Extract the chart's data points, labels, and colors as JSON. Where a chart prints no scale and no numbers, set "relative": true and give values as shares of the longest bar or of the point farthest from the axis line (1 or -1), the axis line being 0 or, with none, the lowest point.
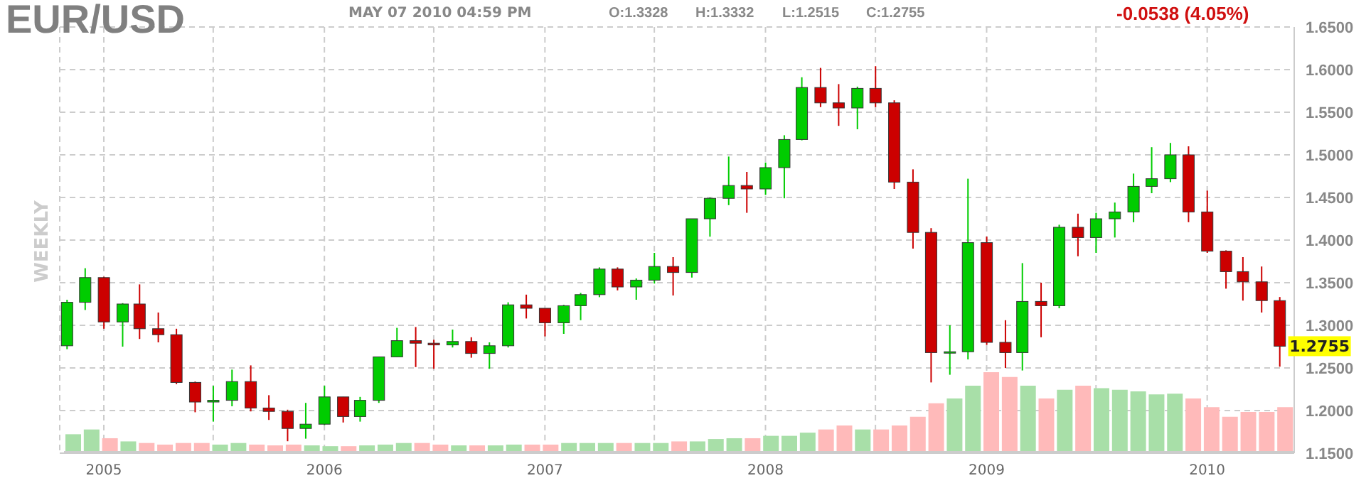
{
  "chart_data": [
    {
      "type": "candlestick",
      "title": "EUR/USD",
      "subtitle": "MAY 07 2010 04:59 PM",
      "ylabel": "WEEKLY",
      "annotations": [
        "O:1.3328",
        "H:1.3332",
        "L:1.2515",
        "C:1.2755",
        "-0.0538 (4.05%)",
        {
          "text": "1.2755",
          "x": "2010-05",
          "y": 1.2755
        }
      ],
      "x": [
        "2004-11",
        "2004-12",
        "2005-01",
        "2005-02",
        "2005-03",
        "2005-04",
        "2005-05",
        "2005-06",
        "2005-07",
        "2005-08",
        "2005-09",
        "2005-10",
        "2005-11",
        "2005-12",
        "2006-01",
        "2006-02",
        "2006-03",
        "2006-04",
        "2006-05",
        "2006-06",
        "2006-07",
        "2006-08",
        "2006-09",
        "2006-10",
        "2006-11",
        "2006-12",
        "2007-01",
        "2007-02",
        "2007-03",
        "2007-04",
        "2007-05",
        "2007-06",
        "2007-07",
        "2007-08",
        "2007-09",
        "2007-10",
        "2007-11",
        "2007-12",
        "2008-01",
        "2008-02",
        "2008-03",
        "2008-04",
        "2008-05",
        "2008-06",
        "2008-07",
        "2008-08",
        "2008-09",
        "2008-10",
        "2008-11",
        "2008-12",
        "2009-01",
        "2009-02",
        "2009-03",
        "2009-04",
        "2009-05",
        "2009-06",
        "2009-07",
        "2009-08",
        "2009-09",
        "2009-10",
        "2009-11",
        "2009-12",
        "2010-01",
        "2010-02",
        "2010-03",
        "2010-04",
        "2010-05"
      ],
      "ohlc": [
        [
          1.276,
          1.33,
          1.272,
          1.327
        ],
        [
          1.327,
          1.367,
          1.318,
          1.356
        ],
        [
          1.356,
          1.357,
          1.296,
          1.304
        ],
        [
          1.304,
          1.326,
          1.275,
          1.325
        ],
        [
          1.325,
          1.348,
          1.284,
          1.296
        ],
        [
          1.296,
          1.315,
          1.28,
          1.289
        ],
        [
          1.289,
          1.296,
          1.231,
          1.233
        ],
        [
          1.233,
          1.234,
          1.198,
          1.21
        ],
        [
          1.21,
          1.229,
          1.187,
          1.212
        ],
        [
          1.212,
          1.248,
          1.205,
          1.234
        ],
        [
          1.234,
          1.253,
          1.199,
          1.203
        ],
        [
          1.203,
          1.218,
          1.189,
          1.199
        ],
        [
          1.199,
          1.201,
          1.164,
          1.179
        ],
        [
          1.179,
          1.209,
          1.167,
          1.184
        ],
        [
          1.184,
          1.229,
          1.183,
          1.216
        ],
        [
          1.216,
          1.216,
          1.186,
          1.193
        ],
        [
          1.193,
          1.216,
          1.187,
          1.212
        ],
        [
          1.212,
          1.263,
          1.209,
          1.263
        ],
        [
          1.263,
          1.297,
          1.263,
          1.282
        ],
        [
          1.282,
          1.298,
          1.251,
          1.279
        ],
        [
          1.279,
          1.283,
          1.249,
          1.277
        ],
        [
          1.277,
          1.295,
          1.274,
          1.281
        ],
        [
          1.281,
          1.286,
          1.262,
          1.267
        ],
        [
          1.267,
          1.28,
          1.249,
          1.276
        ],
        [
          1.276,
          1.327,
          1.274,
          1.324
        ],
        [
          1.324,
          1.336,
          1.308,
          1.32
        ],
        [
          1.32,
          1.32,
          1.287,
          1.303
        ],
        [
          1.303,
          1.324,
          1.29,
          1.323
        ],
        [
          1.323,
          1.338,
          1.306,
          1.336
        ],
        [
          1.336,
          1.368,
          1.333,
          1.366
        ],
        [
          1.366,
          1.368,
          1.341,
          1.345
        ],
        [
          1.345,
          1.355,
          1.33,
          1.353
        ],
        [
          1.353,
          1.385,
          1.349,
          1.369
        ],
        [
          1.369,
          1.38,
          1.335,
          1.362
        ],
        [
          1.362,
          1.425,
          1.356,
          1.425
        ],
        [
          1.425,
          1.45,
          1.404,
          1.449
        ],
        [
          1.449,
          1.498,
          1.441,
          1.464
        ],
        [
          1.464,
          1.48,
          1.432,
          1.46
        ],
        [
          1.46,
          1.491,
          1.453,
          1.485
        ],
        [
          1.485,
          1.523,
          1.449,
          1.518
        ],
        [
          1.518,
          1.591,
          1.517,
          1.579
        ],
        [
          1.579,
          1.602,
          1.556,
          1.561
        ],
        [
          1.561,
          1.583,
          1.534,
          1.555
        ],
        [
          1.555,
          1.58,
          1.53,
          1.578
        ],
        [
          1.578,
          1.604,
          1.556,
          1.561
        ],
        [
          1.561,
          1.564,
          1.46,
          1.468
        ],
        [
          1.468,
          1.483,
          1.39,
          1.409
        ],
        [
          1.409,
          1.414,
          1.233,
          1.268
        ],
        [
          1.268,
          1.3,
          1.242,
          1.269
        ],
        [
          1.269,
          1.472,
          1.26,
          1.397
        ],
        [
          1.397,
          1.404,
          1.277,
          1.28
        ],
        [
          1.28,
          1.306,
          1.25,
          1.268
        ],
        [
          1.268,
          1.373,
          1.247,
          1.328
        ],
        [
          1.328,
          1.35,
          1.286,
          1.323
        ],
        [
          1.323,
          1.418,
          1.32,
          1.415
        ],
        [
          1.415,
          1.431,
          1.381,
          1.403
        ],
        [
          1.403,
          1.432,
          1.385,
          1.425
        ],
        [
          1.425,
          1.444,
          1.403,
          1.433
        ],
        [
          1.433,
          1.478,
          1.421,
          1.463
        ],
        [
          1.463,
          1.509,
          1.455,
          1.472
        ],
        [
          1.472,
          1.514,
          1.468,
          1.5
        ],
        [
          1.5,
          1.51,
          1.421,
          1.433
        ],
        [
          1.433,
          1.458,
          1.385,
          1.387
        ],
        [
          1.387,
          1.388,
          1.343,
          1.363
        ],
        [
          1.363,
          1.38,
          1.329,
          1.351
        ],
        [
          1.351,
          1.369,
          1.315,
          1.329
        ],
        [
          1.329,
          1.3332,
          1.2515,
          1.2755
        ]
      ],
      "colors": [
        "#00cc00",
        "#00cc00",
        "#cc0000",
        "#00cc00",
        "#cc0000",
        "#cc0000",
        "#cc0000",
        "#cc0000",
        "#00cc00",
        "#00cc00",
        "#cc0000",
        "#cc0000",
        "#cc0000",
        "#00cc00",
        "#00cc00",
        "#cc0000",
        "#00cc00",
        "#00cc00",
        "#00cc00",
        "#cc0000",
        "#cc0000",
        "#00cc00",
        "#cc0000",
        "#00cc00",
        "#00cc00",
        "#cc0000",
        "#cc0000",
        "#00cc00",
        "#00cc00",
        "#00cc00",
        "#cc0000",
        "#00cc00",
        "#00cc00",
        "#cc0000",
        "#00cc00",
        "#00cc00",
        "#00cc00",
        "#cc0000",
        "#00cc00",
        "#00cc00",
        "#00cc00",
        "#cc0000",
        "#cc0000",
        "#00cc00",
        "#cc0000",
        "#cc0000",
        "#cc0000",
        "#cc0000",
        "#00cc00",
        "#00cc00",
        "#cc0000",
        "#cc0000",
        "#00cc00",
        "#cc0000",
        "#00cc00",
        "#cc0000",
        "#00cc00",
        "#00cc00",
        "#00cc00",
        "#00cc00",
        "#00cc00",
        "#cc0000",
        "#cc0000",
        "#cc0000",
        "#cc0000",
        "#cc0000",
        "#cc0000"
      ],
      "xlim": [
        "2004-10-20",
        "2010-05-25"
      ],
      "xticks": [
        {
          "value": "2005-01",
          "label": "2005"
        },
        {
          "value": "2005-07",
          "label": null
        },
        {
          "value": "2006-01",
          "label": "2006"
        },
        {
          "value": "2006-07",
          "label": null
        },
        {
          "value": "2007-01",
          "label": "2007"
        },
        {
          "value": "2007-07",
          "label": null
        },
        {
          "value": "2008-01",
          "label": "2008"
        },
        {
          "value": "2008-07",
          "label": null
        },
        {
          "value": "2009-01",
          "label": "2009"
        },
        {
          "value": "2009-07",
          "label": null
        },
        {
          "value": "2010-01",
          "label": "2010"
        }
      ],
      "ylim": [
        1.15,
        1.65
      ],
      "yticks": [
        {
          "value": 1.15,
          "label": "1.1500"
        },
        {
          "value": 1.2,
          "label": "1.2000"
        },
        {
          "value": 1.25,
          "label": "1.2500"
        },
        {
          "value": 1.3,
          "label": "1.3000"
        },
        {
          "value": 1.35,
          "label": "1.3500"
        },
        {
          "value": 1.4,
          "label": "1.4000"
        },
        {
          "value": 1.45,
          "label": "1.4500"
        },
        {
          "value": 1.5,
          "label": "1.5000"
        },
        {
          "value": 1.55,
          "label": "1.5500"
        },
        {
          "value": 1.6,
          "label": "1.6000"
        },
        {
          "value": 1.65,
          "label": "1.6500"
        }
      ],
      "grid": true
    },
    {
      "type": "bar",
      "relative": true,
      "categories": [
        null,
        null,
        null,
        null,
        null,
        null,
        null,
        null,
        null,
        null,
        null,
        null,
        null,
        null,
        null,
        null,
        null,
        null,
        null,
        null,
        null,
        null,
        null,
        null,
        null,
        null,
        null,
        null,
        null,
        null,
        null,
        null,
        null,
        null,
        null,
        null,
        null,
        null,
        null,
        null,
        null,
        null,
        null,
        null,
        null,
        null,
        null,
        null,
        null,
        null,
        null,
        null,
        null,
        null,
        null,
        null,
        null,
        null,
        null,
        null,
        null,
        null,
        null,
        null,
        null,
        null,
        null
      ],
      "values": [
        0.22,
        0.28,
        0.17,
        0.13,
        0.11,
        0.09,
        0.11,
        0.11,
        0.09,
        0.11,
        0.09,
        0.08,
        0.09,
        0.08,
        0.07,
        0.07,
        0.08,
        0.09,
        0.11,
        0.11,
        0.09,
        0.08,
        0.08,
        0.08,
        0.09,
        0.09,
        0.09,
        0.11,
        0.11,
        0.11,
        0.11,
        0.11,
        0.11,
        0.13,
        0.13,
        0.16,
        0.17,
        0.17,
        0.2,
        0.2,
        0.24,
        0.28,
        0.33,
        0.28,
        0.28,
        0.33,
        0.44,
        0.61,
        0.67,
        0.83,
        1,
        0.94,
        0.83,
        0.67,
        0.78,
        0.83,
        0.8,
        0.78,
        0.76,
        0.72,
        0.73,
        0.67,
        0.56,
        0.44,
        0.5,
        0.5,
        0.56
      ],
      "colors": [
        "#a8dfa8",
        "#a8dfa8",
        "#ffbaba",
        "#a8dfa8",
        "#ffbaba",
        "#ffbaba",
        "#ffbaba",
        "#ffbaba",
        "#a8dfa8",
        "#a8dfa8",
        "#ffbaba",
        "#ffbaba",
        "#ffbaba",
        "#a8dfa8",
        "#a8dfa8",
        "#ffbaba",
        "#a8dfa8",
        "#a8dfa8",
        "#a8dfa8",
        "#ffbaba",
        "#ffbaba",
        "#a8dfa8",
        "#ffbaba",
        "#a8dfa8",
        "#a8dfa8",
        "#ffbaba",
        "#ffbaba",
        "#a8dfa8",
        "#a8dfa8",
        "#a8dfa8",
        "#ffbaba",
        "#a8dfa8",
        "#a8dfa8",
        "#ffbaba",
        "#a8dfa8",
        "#a8dfa8",
        "#a8dfa8",
        "#ffbaba",
        "#a8dfa8",
        "#a8dfa8",
        "#a8dfa8",
        "#ffbaba",
        "#ffbaba",
        "#a8dfa8",
        "#ffbaba",
        "#ffbaba",
        "#ffbaba",
        "#ffbaba",
        "#a8dfa8",
        "#a8dfa8",
        "#ffbaba",
        "#ffbaba",
        "#a8dfa8",
        "#ffbaba",
        "#a8dfa8",
        "#ffbaba",
        "#a8dfa8",
        "#a8dfa8",
        "#a8dfa8",
        "#a8dfa8",
        "#a8dfa8",
        "#ffbaba",
        "#ffbaba",
        "#ffbaba",
        "#ffbaba",
        "#ffbaba",
        "#ffbaba"
      ]
    }
  ]
}
